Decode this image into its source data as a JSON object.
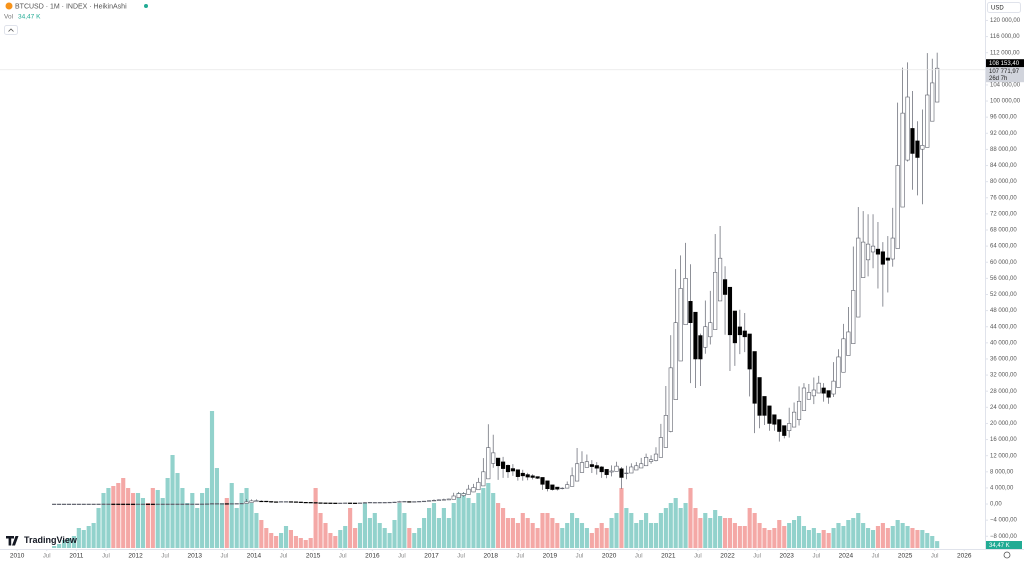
{
  "header": {
    "symbol": "BTCUSD · 1M · INDEX · HeikinAshi",
    "volume_label": "Vol",
    "currency": "USD",
    "brand": "TradingView"
  },
  "chart_data": {
    "type": "candlestick",
    "x": [
      2010.583,
      2010.667,
      2010.75,
      2010.833,
      2010.917,
      2011,
      2011.083,
      2011.167,
      2011.25,
      2011.333,
      2011.417,
      2011.5,
      2011.583,
      2011.667,
      2011.75,
      2011.833,
      2011.917,
      2012,
      2012.083,
      2012.167,
      2012.25,
      2012.333,
      2012.417,
      2012.5,
      2012.583,
      2012.667,
      2012.75,
      2012.833,
      2012.917,
      2013,
      2013.083,
      2013.167,
      2013.25,
      2013.333,
      2013.417,
      2013.5,
      2013.583,
      2013.667,
      2013.75,
      2013.833,
      2013.917,
      2014,
      2014.083,
      2014.167,
      2014.25,
      2014.333,
      2014.417,
      2014.5,
      2014.583,
      2014.667,
      2014.75,
      2014.833,
      2014.917,
      2015,
      2015.083,
      2015.167,
      2015.25,
      2015.333,
      2015.417,
      2015.5,
      2015.583,
      2015.667,
      2015.75,
      2015.833,
      2015.917,
      2016,
      2016.083,
      2016.167,
      2016.25,
      2016.333,
      2016.417,
      2016.5,
      2016.583,
      2016.667,
      2016.75,
      2016.833,
      2016.917,
      2017,
      2017.083,
      2017.167,
      2017.25,
      2017.333,
      2017.417,
      2017.5,
      2017.583,
      2017.667,
      2017.75,
      2017.833,
      2017.917,
      2018,
      2018.083,
      2018.167,
      2018.25,
      2018.333,
      2018.417,
      2018.5,
      2018.583,
      2018.667,
      2018.75,
      2018.833,
      2018.917,
      2019,
      2019.083,
      2019.167,
      2019.25,
      2019.333,
      2019.417,
      2019.5,
      2019.583,
      2019.667,
      2019.75,
      2019.833,
      2019.917,
      2020,
      2020.083,
      2020.167,
      2020.25,
      2020.333,
      2020.417,
      2020.5,
      2020.583,
      2020.667,
      2020.75,
      2020.833,
      2020.917,
      2021,
      2021.083,
      2021.167,
      2021.25,
      2021.333,
      2021.417,
      2021.5,
      2021.583,
      2021.667,
      2021.75,
      2021.833,
      2021.917,
      2022,
      2022.083,
      2022.167,
      2022.25,
      2022.333,
      2022.417,
      2022.5,
      2022.583,
      2022.667,
      2022.75,
      2022.833,
      2022.917,
      2023,
      2023.083,
      2023.167,
      2023.25,
      2023.333,
      2023.417,
      2023.5,
      2023.583,
      2023.667,
      2023.75,
      2023.833,
      2023.917,
      2024,
      2024.083,
      2024.167,
      2024.25,
      2024.333,
      2024.417,
      2024.5,
      2024.583,
      2024.667,
      2024.75,
      2024.833,
      2024.917,
      2025,
      2025.083,
      2025.167,
      2025.25,
      2025.333,
      2025.417,
      2025.5
    ],
    "open": [
      0.06,
      0.062,
      0.063,
      0.09,
      0.18,
      0.22,
      0.28,
      0.54,
      0.68,
      1.34,
      3.7,
      10.3,
      12.2,
      11.1,
      8.8,
      6.4,
      4.7,
      4.25,
      5,
      5.15,
      5.07,
      5.03,
      5.07,
      5.6,
      6.9,
      8.95,
      10.2,
      10.85,
      11.3,
      12.15,
      14.1,
      19.5,
      37,
      78.5,
      99,
      102,
      96,
      105.5,
      118,
      144,
      347,
      575,
      712,
      710,
      635,
      560,
      540,
      575,
      590,
      555,
      500,
      430,
      410,
      375,
      310,
      275,
      265,
      250,
      240,
      245,
      265,
      250,
      240,
      260,
      310,
      365,
      385,
      400,
      410,
      425,
      450,
      545,
      600,
      590,
      600,
      630,
      675,
      765,
      850,
      950,
      1025,
      1140,
      1570,
      2100,
      2350,
      3000,
      3550,
      4500,
      6250,
      10100,
      11400,
      10450,
      9600,
      8800,
      8500,
      7650,
      7300,
      7000,
      6800,
      6600,
      5750,
      4750,
      4200,
      3950,
      3950,
      4400,
      5700,
      7850,
      9100,
      9800,
      9550,
      9200,
      8600,
      7950,
      8100,
      8750,
      7700,
      7700,
      8450,
      8950,
      9500,
      10550,
      10800,
      11600,
      14050,
      18000,
      25900,
      35500,
      44500,
      50300,
      47600,
      41800,
      38900,
      41500,
      43300,
      50400,
      55700,
      53800,
      47900,
      43950,
      42950,
      42200,
      37850,
      31400,
      26700,
      24350,
      22150,
      20950,
      19450,
      18200,
      19100,
      20950,
      23200,
      26000,
      26850,
      27550,
      28800,
      28150,
      27300,
      28900,
      32700,
      36850,
      39800,
      46400,
      56200,
      60600,
      62550,
      63250,
      62600,
      61050,
      60800,
      63400,
      73700,
      85350,
      93200,
      90100,
      88050,
      88500,
      95000,
      99750
    ],
    "high": [
      0.07,
      0.07,
      0.2,
      0.5,
      0.3,
      0.45,
      1.1,
      0.95,
      4,
      9,
      31,
      16,
      14,
      11.1,
      8.8,
      6.4,
      4.7,
      7.4,
      6.7,
      5.5,
      5.3,
      5.3,
      6.8,
      9.7,
      16,
      12.9,
      13,
      12.9,
      13.8,
      21,
      33,
      95,
      266,
      140,
      130,
      110,
      135,
      145,
      220,
      1240,
      1150,
      1160,
      900,
      720,
      635,
      630,
      680,
      660,
      600,
      555,
      500,
      460,
      410,
      375,
      310,
      300,
      265,
      250,
      270,
      320,
      265,
      250,
      320,
      500,
      470,
      460,
      440,
      430,
      470,
      550,
      780,
      680,
      610,
      620,
      720,
      760,
      975,
      1150,
      1200,
      1350,
      1360,
      2800,
      3000,
      2950,
      4750,
      5000,
      6500,
      11400,
      19800,
      17200,
      11400,
      11700,
      9800,
      9900,
      8500,
      8500,
      7750,
      7400,
      6800,
      6600,
      5750,
      4750,
      4200,
      4150,
      5600,
      9100,
      13900,
      13100,
      12300,
      10900,
      10400,
      9400,
      8600,
      9600,
      10500,
      9200,
      9500,
      10100,
      10400,
      11450,
      12500,
      12100,
      14100,
      19900,
      29300,
      41900,
      58300,
      61700,
      64800,
      59500,
      47600,
      42300,
      50500,
      52900,
      67000,
      69000,
      59000,
      53800,
      47900,
      48200,
      47400,
      42200,
      37850,
      31400,
      26700,
      24350,
      22150,
      20950,
      19450,
      23900,
      25200,
      29200,
      30000,
      29800,
      31400,
      31800,
      30000,
      28150,
      35200,
      38400,
      44700,
      48900,
      63900,
      73700,
      72700,
      71900,
      71900,
      70000,
      65000,
      66500,
      73500,
      99600,
      108300,
      109600,
      102500,
      95000,
      97900,
      111900,
      110500,
      112000
    ],
    "low": [
      0.05,
      0.06,
      0.06,
      0.09,
      0.18,
      0.22,
      0.28,
      0.54,
      0.68,
      1.34,
      3.7,
      10.3,
      7,
      4,
      2,
      2,
      2.8,
      4.25,
      4.2,
      4.7,
      4.8,
      4.9,
      5.07,
      5.6,
      6.9,
      8.95,
      10.2,
      10,
      11.3,
      12.15,
      14.1,
      19.5,
      37,
      78.5,
      99,
      65,
      96,
      105.5,
      118,
      144,
      347,
      575,
      500,
      460,
      340,
      440,
      540,
      570,
      450,
      370,
      280,
      340,
      300,
      170,
      210,
      240,
      210,
      220,
      230,
      245,
      200,
      225,
      240,
      260,
      310,
      350,
      370,
      400,
      410,
      425,
      450,
      545,
      540,
      590,
      600,
      630,
      675,
      765,
      850,
      950,
      1025,
      1140,
      1570,
      1800,
      2350,
      2950,
      3550,
      4500,
      6250,
      9000,
      6000,
      6500,
      6500,
      7000,
      5800,
      5800,
      5900,
      6100,
      6200,
      3500,
      3150,
      3350,
      3350,
      3650,
      3950,
      4400,
      5700,
      7850,
      9100,
      7700,
      7300,
      6500,
      6400,
      6850,
      8100,
      3800,
      6150,
      7700,
      8450,
      8950,
      9500,
      10000,
      10600,
      11600,
      14050,
      17800,
      25900,
      35500,
      44500,
      30000,
      28800,
      29300,
      37300,
      39600,
      43300,
      50400,
      42000,
      33000,
      34300,
      37200,
      37700,
      26700,
      17600,
      18800,
      19600,
      18200,
      18200,
      15500,
      16300,
      16500,
      19100,
      19500,
      23200,
      25900,
      24800,
      27550,
      25400,
      24900,
      26550,
      28900,
      32700,
      36850,
      39800,
      46400,
      56200,
      56500,
      58500,
      53500,
      49000,
      52500,
      58900,
      63400,
      73700,
      85000,
      78000,
      76600,
      74400,
      88500,
      95000,
      99750
    ],
    "close": [
      0.065,
      0.064,
      0.12,
      0.27,
      0.26,
      0.35,
      0.8,
      0.82,
      2,
      6,
      17,
      14,
      10,
      6.5,
      4,
      3,
      3.8,
      5.8,
      5.3,
      5,
      5,
      5.1,
      6.1,
      8.2,
      11,
      11.5,
      11.5,
      11.8,
      13,
      16,
      25,
      55,
      120,
      120,
      105,
      90,
      115,
      130,
      170,
      550,
      800,
      850,
      650,
      560,
      480,
      520,
      610,
      610,
      520,
      440,
      360,
      390,
      340,
      250,
      240,
      260,
      235,
      235,
      250,
      280,
      240,
      235,
      280,
      360,
      420,
      400,
      410,
      415,
      440,
      480,
      640,
      650,
      580,
      605,
      660,
      720,
      850,
      930,
      1050,
      1100,
      1250,
      2000,
      2600,
      2600,
      3700,
      4100,
      5400,
      8000,
      14000,
      12700,
      9500,
      8800,
      8000,
      8200,
      6800,
      7000,
      6700,
      6600,
      6400,
      4900,
      3800,
      3600,
      3700,
      3950,
      4800,
      7000,
      10000,
      10300,
      10500,
      9300,
      8900,
      8000,
      7300,
      8200,
      9400,
      6600,
      7700,
      9200,
      9500,
      10000,
      11600,
      11000,
      12400,
      16500,
      22000,
      33800,
      45000,
      53500,
      56000,
      45000,
      36000,
      36000,
      44000,
      45000,
      57500,
      61000,
      52000,
      42000,
      40000,
      42000,
      41500,
      33500,
      25000,
      22000,
      22000,
      20000,
      19800,
      18000,
      17000,
      20000,
      22800,
      25500,
      28800,
      27700,
      28300,
      30000,
      27500,
      26500,
      30500,
      36500,
      41000,
      42700,
      53000,
      66000,
      65000,
      64500,
      64000,
      62000,
      59500,
      60500,
      66000,
      84000,
      97000,
      101000,
      87000,
      86000,
      89000,
      101500,
      104500,
      108150
    ],
    "volume": [
      10,
      20,
      40,
      50,
      60,
      100,
      90,
      110,
      125,
      200,
      275,
      300,
      310,
      325,
      350,
      300,
      275,
      275,
      250,
      225,
      300,
      290,
      250,
      350,
      465,
      375,
      300,
      225,
      275,
      200,
      275,
      300,
      685,
      400,
      225,
      250,
      325,
      200,
      275,
      300,
      225,
      175,
      140,
      100,
      75,
      60,
      75,
      110,
      90,
      60,
      50,
      40,
      50,
      300,
      175,
      125,
      75,
      60,
      90,
      110,
      200,
      100,
      125,
      225,
      150,
      175,
      125,
      100,
      75,
      140,
      225,
      175,
      100,
      75,
      100,
      150,
      200,
      225,
      150,
      200,
      150,
      225,
      275,
      275,
      250,
      225,
      275,
      300,
      325,
      275,
      225,
      200,
      150,
      150,
      125,
      175,
      150,
      125,
      100,
      175,
      175,
      150,
      125,
      100,
      125,
      175,
      150,
      125,
      100,
      75,
      100,
      125,
      100,
      150,
      175,
      300,
      200,
      175,
      125,
      140,
      175,
      125,
      125,
      175,
      200,
      225,
      250,
      200,
      225,
      300,
      200,
      150,
      175,
      150,
      190,
      160,
      150,
      150,
      125,
      110,
      110,
      200,
      175,
      125,
      100,
      90,
      100,
      140,
      110,
      125,
      140,
      160,
      110,
      90,
      100,
      75,
      90,
      75,
      100,
      125,
      110,
      140,
      150,
      175,
      125,
      100,
      90,
      110,
      125,
      100,
      110,
      140,
      125,
      110,
      100,
      90,
      90,
      75,
      60,
      34.47
    ],
    "volume_last_label": "34,47 K",
    "up_color": "#ffffff",
    "up_border_color": "#5d606b",
    "down_color": "#000000",
    "volume_up_color": "#92d2cc",
    "volume_down_color": "#f4a8a6",
    "xlim": [
      2009.71,
      2026.35
    ],
    "xticks": [
      2010,
      {
        "value": 2010.5,
        "label": "Jul"
      },
      2011,
      {
        "value": 2011.5,
        "label": "Jul"
      },
      2012,
      {
        "value": 2012.5,
        "label": "Jul"
      },
      2013,
      {
        "value": 2013.5,
        "label": "Jul"
      },
      2014,
      {
        "value": 2014.5,
        "label": "Jul"
      },
      2015,
      {
        "value": 2015.5,
        "label": "Jul"
      },
      2016,
      {
        "value": 2016.5,
        "label": "Jul"
      },
      2017,
      {
        "value": 2017.5,
        "label": "Jul"
      },
      2018,
      {
        "value": 2018.5,
        "label": "Jul"
      },
      2019,
      {
        "value": 2019.5,
        "label": "Jul"
      },
      2020,
      {
        "value": 2020.5,
        "label": "Jul"
      },
      2021,
      {
        "value": 2021.5,
        "label": "Jul"
      },
      2022,
      {
        "value": 2022.5,
        "label": "Jul"
      },
      2023,
      {
        "value": 2023.5,
        "label": "Jul"
      },
      2024,
      {
        "value": 2024.5,
        "label": "Jul"
      },
      2025,
      {
        "value": 2025.5,
        "label": "Jul"
      },
      2026
    ],
    "ylim": [
      -12000,
      124000
    ],
    "yticks": [
      {
        "value": 120000,
        "label": "120 000,00"
      },
      {
        "value": 116000,
        "label": "116 000,00"
      },
      {
        "value": 112000,
        "label": "112 000,00"
      },
      {
        "value": 108000,
        "label": "108 000,00"
      },
      {
        "value": 104000,
        "label": "104 000,00"
      },
      {
        "value": 100000,
        "label": "100 000,00"
      },
      {
        "value": 96000,
        "label": "96 000,00"
      },
      {
        "value": 92000,
        "label": "92 000,00"
      },
      {
        "value": 88000,
        "label": "88 000,00"
      },
      {
        "value": 84000,
        "label": "84 000,00"
      },
      {
        "value": 80000,
        "label": "80 000,00"
      },
      {
        "value": 76000,
        "label": "76 000,00"
      },
      {
        "value": 72000,
        "label": "72 000,00"
      },
      {
        "value": 68000,
        "label": "68 000,00"
      },
      {
        "value": 64000,
        "label": "64 000,00"
      },
      {
        "value": 60000,
        "label": "60 000,00"
      },
      {
        "value": 56000,
        "label": "56 000,00"
      },
      {
        "value": 52000,
        "label": "52 000,00"
      },
      {
        "value": 48000,
        "label": "48 000,00"
      },
      {
        "value": 44000,
        "label": "44 000,00"
      },
      {
        "value": 40000,
        "label": "40 000,00"
      },
      {
        "value": 36000,
        "label": "36 000,00"
      },
      {
        "value": 32000,
        "label": "32 000,00"
      },
      {
        "value": 28000,
        "label": "28 000,00"
      },
      {
        "value": 24000,
        "label": "24 000,00"
      },
      {
        "value": 20000,
        "label": "20 000,00"
      },
      {
        "value": 16000,
        "label": "16 000,00"
      },
      {
        "value": 12000,
        "label": "12 000,00"
      },
      {
        "value": 8000,
        "label": "8 000,00"
      },
      {
        "value": 4000,
        "label": "4 000,00"
      },
      {
        "value": 0,
        "label": "0,00"
      },
      {
        "value": -4000,
        "label": "−4 000,00"
      },
      {
        "value": -8000,
        "label": "−8 000,00"
      }
    ],
    "last_price": {
      "value": 108153.4,
      "label": "108 153,40"
    },
    "mark_price": {
      "value": 107771.97,
      "label": "107 771,97"
    },
    "countdown": "26d 7h"
  }
}
